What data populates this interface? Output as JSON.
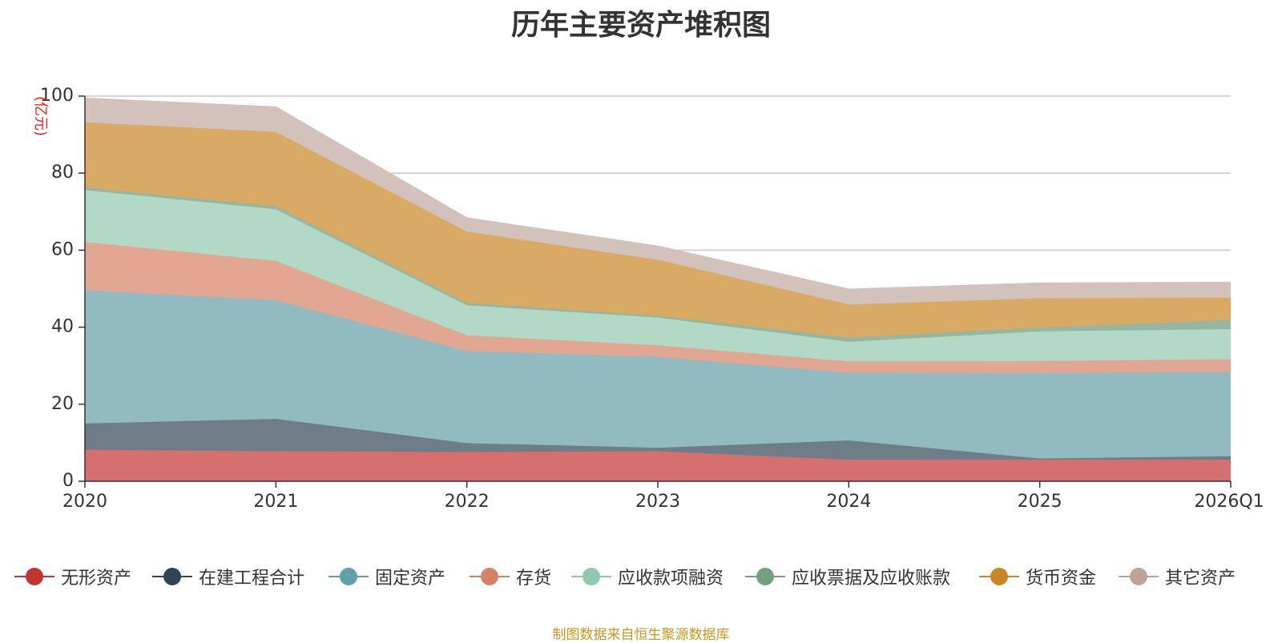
{
  "chart_data": {
    "type": "area",
    "stacked": true,
    "title": "历年主要资产堆积图",
    "unit_label": "(亿元)",
    "categories": [
      "2020",
      "2021",
      "2022",
      "2023",
      "2024",
      "2025",
      "2026Q1"
    ],
    "ylim": [
      0,
      100
    ],
    "yticks": [
      0,
      20,
      40,
      60,
      80,
      100
    ],
    "ytick_labels": [
      "0",
      "20",
      "40",
      "60",
      "80",
      "100"
    ],
    "grid": true,
    "legend_position": "bottom",
    "series": [
      {
        "name": "无形资产",
        "color": "#c23531",
        "fill": "#d5706e",
        "values": [
          8.2,
          7.8,
          7.6,
          7.8,
          5.6,
          5.6,
          5.6
        ]
      },
      {
        "name": "在建工程合计",
        "color": "#2f4554",
        "fill": "#6e7d88",
        "values": [
          6.8,
          8.4,
          2.3,
          0.9,
          5.0,
          0.3,
          0.9
        ]
      },
      {
        "name": "固定资产",
        "color": "#61a0a8",
        "fill": "#91bbc1",
        "values": [
          34.6,
          30.8,
          23.9,
          23.6,
          17.6,
          22.2,
          21.9
        ]
      },
      {
        "name": "存货",
        "color": "#d48265",
        "fill": "#e1a793",
        "values": [
          12.5,
          10.2,
          4.1,
          3.0,
          2.9,
          3.1,
          3.3
        ]
      },
      {
        "name": "应收款项融资",
        "color": "#91c7ae",
        "fill": "#b1d9c5",
        "values": [
          13.5,
          13.4,
          7.8,
          7.2,
          5.1,
          7.7,
          7.8
        ]
      },
      {
        "name": "应收票据及应收账款",
        "color": "#749f83",
        "fill": "#97b6a2",
        "values": [
          0.7,
          0.8,
          0.6,
          0.5,
          1.1,
          1.0,
          2.4
        ]
      },
      {
        "name": "货币资金",
        "color": "#ca8622",
        "fill": "#d9aa64",
        "values": [
          16.9,
          19.3,
          18.5,
          14.5,
          8.6,
          7.6,
          5.8
        ]
      },
      {
        "name": "其它资产",
        "color": "#bda29a",
        "fill": "#d3c1bb",
        "values": [
          6.2,
          6.4,
          3.5,
          3.5,
          3.9,
          3.9,
          3.9
        ]
      }
    ]
  },
  "source_note": "制图数据来自恒生聚源数据库"
}
